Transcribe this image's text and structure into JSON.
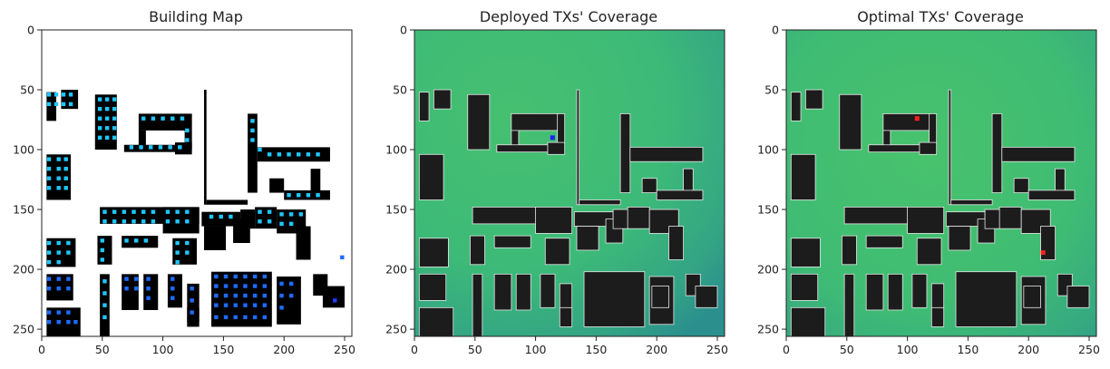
{
  "chart_data": [
    {
      "type": "heatmap",
      "title": "Building Map",
      "xlim": [
        0,
        256
      ],
      "ylim": [
        256,
        0
      ],
      "x_ticks": [
        0,
        50,
        100,
        150,
        200,
        250
      ],
      "y_ticks": [
        0,
        50,
        100,
        150,
        200,
        250
      ],
      "x_tick_labels": [
        "0",
        "50",
        "100",
        "150",
        "200",
        "250"
      ],
      "y_tick_labels": [
        "0",
        "50",
        "100",
        "150",
        "200",
        "250"
      ],
      "background": "#ffffff",
      "building_color": "#000000",
      "marker_colors": [
        "#1ec8ff",
        "#1e6bff"
      ],
      "buildings": [
        [
          4,
          52,
          12,
          76
        ],
        [
          16,
          50,
          30,
          66
        ],
        [
          44,
          54,
          62,
          100
        ],
        [
          80,
          70,
          120,
          84
        ],
        [
          118,
          70,
          124,
          100
        ],
        [
          80,
          84,
          86,
          98
        ],
        [
          68,
          96,
          110,
          102
        ],
        [
          110,
          94,
          124,
          104
        ],
        [
          4,
          104,
          24,
          142
        ],
        [
          170,
          70,
          178,
          136
        ],
        [
          178,
          98,
          238,
          110
        ],
        [
          222,
          116,
          230,
          136
        ],
        [
          188,
          124,
          200,
          136
        ],
        [
          200,
          134,
          238,
          142
        ],
        [
          134,
          50,
          136,
          146
        ],
        [
          136,
          142,
          170,
          146
        ],
        [
          48,
          148,
          130,
          162
        ],
        [
          176,
          148,
          194,
          166
        ],
        [
          194,
          150,
          218,
          170
        ],
        [
          210,
          164,
          222,
          192
        ],
        [
          4,
          174,
          28,
          198
        ],
        [
          46,
          172,
          58,
          196
        ],
        [
          66,
          172,
          96,
          182
        ],
        [
          108,
          174,
          128,
          196
        ],
        [
          132,
          152,
          164,
          164
        ],
        [
          134,
          164,
          152,
          184
        ],
        [
          158,
          158,
          172,
          178
        ],
        [
          100,
          148,
          130,
          170
        ],
        [
          164,
          150,
          176,
          166
        ],
        [
          4,
          204,
          26,
          226
        ],
        [
          4,
          232,
          32,
          256
        ],
        [
          48,
          204,
          56,
          256
        ],
        [
          66,
          204,
          80,
          234
        ],
        [
          84,
          204,
          96,
          234
        ],
        [
          104,
          204,
          116,
          232
        ],
        [
          120,
          212,
          130,
          244
        ],
        [
          140,
          202,
          190,
          248
        ],
        [
          194,
          206,
          214,
          246
        ],
        [
          224,
          204,
          236,
          222
        ],
        [
          232,
          214,
          250,
          232
        ],
        [
          120,
          232,
          130,
          248
        ],
        [
          196,
          214,
          210,
          232
        ]
      ],
      "markers": [
        [
          6,
          54,
          "#1ec8ff"
        ],
        [
          12,
          54,
          "#1ec8ff"
        ],
        [
          18,
          54,
          "#1ec8ff"
        ],
        [
          24,
          54,
          "#1ec8ff"
        ],
        [
          6,
          62,
          "#1ec8ff"
        ],
        [
          12,
          62,
          "#1ec8ff"
        ],
        [
          18,
          62,
          "#1ec8ff"
        ],
        [
          24,
          62,
          "#1ec8ff"
        ],
        [
          48,
          58,
          "#1ec8ff"
        ],
        [
          54,
          58,
          "#1ec8ff"
        ],
        [
          60,
          58,
          "#1ec8ff"
        ],
        [
          48,
          66,
          "#1ec8ff"
        ],
        [
          54,
          66,
          "#1ec8ff"
        ],
        [
          60,
          66,
          "#1ec8ff"
        ],
        [
          48,
          74,
          "#1ec8ff"
        ],
        [
          54,
          74,
          "#1ec8ff"
        ],
        [
          60,
          74,
          "#1ec8ff"
        ],
        [
          48,
          82,
          "#1ec8ff"
        ],
        [
          54,
          82,
          "#1ec8ff"
        ],
        [
          60,
          82,
          "#1ec8ff"
        ],
        [
          48,
          90,
          "#1ec8ff"
        ],
        [
          54,
          90,
          "#1ec8ff"
        ],
        [
          60,
          90,
          "#1ec8ff"
        ],
        [
          84,
          74,
          "#1ec8ff"
        ],
        [
          92,
          74,
          "#1ec8ff"
        ],
        [
          100,
          74,
          "#1ec8ff"
        ],
        [
          108,
          74,
          "#1ec8ff"
        ],
        [
          116,
          74,
          "#1ec8ff"
        ],
        [
          120,
          84,
          "#1ec8ff"
        ],
        [
          120,
          92,
          "#1ec8ff"
        ],
        [
          74,
          98,
          "#1ec8ff"
        ],
        [
          82,
          98,
          "#1ec8ff"
        ],
        [
          90,
          98,
          "#1ec8ff"
        ],
        [
          98,
          98,
          "#1ec8ff"
        ],
        [
          106,
          98,
          "#1ec8ff"
        ],
        [
          114,
          98,
          "#1ec8ff"
        ],
        [
          6,
          108,
          "#1ec8ff"
        ],
        [
          14,
          108,
          "#1ec8ff"
        ],
        [
          20,
          108,
          "#1ec8ff"
        ],
        [
          6,
          116,
          "#1ec8ff"
        ],
        [
          14,
          116,
          "#1ec8ff"
        ],
        [
          20,
          116,
          "#1ec8ff"
        ],
        [
          6,
          124,
          "#1ec8ff"
        ],
        [
          14,
          124,
          "#1ec8ff"
        ],
        [
          20,
          124,
          "#1ec8ff"
        ],
        [
          6,
          132,
          "#1ec8ff"
        ],
        [
          14,
          132,
          "#1ec8ff"
        ],
        [
          20,
          132,
          "#1ec8ff"
        ],
        [
          174,
          76,
          "#1ec8ff"
        ],
        [
          174,
          84,
          "#1ec8ff"
        ],
        [
          174,
          92,
          "#1ec8ff"
        ],
        [
          180,
          100,
          "#1ec8ff"
        ],
        [
          188,
          104,
          "#1ec8ff"
        ],
        [
          196,
          104,
          "#1ec8ff"
        ],
        [
          204,
          104,
          "#1ec8ff"
        ],
        [
          212,
          104,
          "#1ec8ff"
        ],
        [
          220,
          104,
          "#1ec8ff"
        ],
        [
          228,
          104,
          "#1ec8ff"
        ],
        [
          204,
          138,
          "#1ec8ff"
        ],
        [
          212,
          138,
          "#1ec8ff"
        ],
        [
          220,
          138,
          "#1ec8ff"
        ],
        [
          228,
          138,
          "#1ec8ff"
        ],
        [
          52,
          152,
          "#1ec8ff"
        ],
        [
          60,
          152,
          "#1ec8ff"
        ],
        [
          68,
          152,
          "#1ec8ff"
        ],
        [
          76,
          152,
          "#1ec8ff"
        ],
        [
          84,
          152,
          "#1ec8ff"
        ],
        [
          92,
          152,
          "#1ec8ff"
        ],
        [
          52,
          160,
          "#1ec8ff"
        ],
        [
          60,
          160,
          "#1ec8ff"
        ],
        [
          68,
          160,
          "#1ec8ff"
        ],
        [
          76,
          160,
          "#1ec8ff"
        ],
        [
          84,
          160,
          "#1ec8ff"
        ],
        [
          92,
          160,
          "#1ec8ff"
        ],
        [
          104,
          152,
          "#1ec8ff"
        ],
        [
          112,
          152,
          "#1ec8ff"
        ],
        [
          120,
          152,
          "#1ec8ff"
        ],
        [
          104,
          160,
          "#1ec8ff"
        ],
        [
          112,
          160,
          "#1ec8ff"
        ],
        [
          120,
          160,
          "#1ec8ff"
        ],
        [
          140,
          156,
          "#1ec8ff"
        ],
        [
          148,
          156,
          "#1ec8ff"
        ],
        [
          156,
          156,
          "#1ec8ff"
        ],
        [
          180,
          152,
          "#1ec8ff"
        ],
        [
          188,
          152,
          "#1ec8ff"
        ],
        [
          180,
          160,
          "#1ec8ff"
        ],
        [
          188,
          160,
          "#1ec8ff"
        ],
        [
          198,
          154,
          "#1ec8ff"
        ],
        [
          206,
          154,
          "#1ec8ff"
        ],
        [
          214,
          154,
          "#1ec8ff"
        ],
        [
          198,
          162,
          "#1ec8ff"
        ],
        [
          206,
          162,
          "#1ec8ff"
        ],
        [
          6,
          178,
          "#1ec8ff"
        ],
        [
          14,
          178,
          "#1ec8ff"
        ],
        [
          22,
          178,
          "#1ec8ff"
        ],
        [
          6,
          186,
          "#1ec8ff"
        ],
        [
          14,
          186,
          "#1ec8ff"
        ],
        [
          22,
          186,
          "#1ec8ff"
        ],
        [
          6,
          194,
          "#1ec8ff"
        ],
        [
          14,
          194,
          "#1ec8ff"
        ],
        [
          70,
          176,
          "#1ec8ff"
        ],
        [
          78,
          176,
          "#1ec8ff"
        ],
        [
          86,
          176,
          "#1ec8ff"
        ],
        [
          50,
          176,
          "#1ec8ff"
        ],
        [
          50,
          184,
          "#1ec8ff"
        ],
        [
          50,
          192,
          "#1ec8ff"
        ],
        [
          112,
          178,
          "#1ec8ff"
        ],
        [
          120,
          178,
          "#1ec8ff"
        ],
        [
          112,
          186,
          "#1ec8ff"
        ],
        [
          120,
          186,
          "#1ec8ff"
        ],
        [
          112,
          194,
          "#1ec8ff"
        ],
        [
          6,
          208,
          "#1e6bff"
        ],
        [
          14,
          208,
          "#1e6bff"
        ],
        [
          22,
          208,
          "#1e6bff"
        ],
        [
          6,
          216,
          "#1e6bff"
        ],
        [
          14,
          216,
          "#1e6bff"
        ],
        [
          22,
          216,
          "#1e6bff"
        ],
        [
          6,
          236,
          "#1e6bff"
        ],
        [
          14,
          236,
          "#1e6bff"
        ],
        [
          22,
          236,
          "#1e6bff"
        ],
        [
          6,
          244,
          "#1e6bff"
        ],
        [
          14,
          244,
          "#1e6bff"
        ],
        [
          22,
          244,
          "#1e6bff"
        ],
        [
          28,
          244,
          "#1e6bff"
        ],
        [
          52,
          210,
          "#1ec8ff"
        ],
        [
          52,
          220,
          "#1ec8ff"
        ],
        [
          52,
          230,
          "#1ec8ff"
        ],
        [
          52,
          240,
          "#1ec8ff"
        ],
        [
          70,
          208,
          "#1e6bff"
        ],
        [
          78,
          208,
          "#1e6bff"
        ],
        [
          70,
          216,
          "#1e6bff"
        ],
        [
          78,
          216,
          "#1e6bff"
        ],
        [
          88,
          208,
          "#1e6bff"
        ],
        [
          88,
          216,
          "#1e6bff"
        ],
        [
          88,
          224,
          "#1e6bff"
        ],
        [
          108,
          208,
          "#1e6bff"
        ],
        [
          108,
          216,
          "#1e6bff"
        ],
        [
          108,
          224,
          "#1e6bff"
        ],
        [
          124,
          216,
          "#1e6bff"
        ],
        [
          124,
          226,
          "#1e6bff"
        ],
        [
          124,
          236,
          "#1e6bff"
        ],
        [
          144,
          206,
          "#1e6bff"
        ],
        [
          152,
          206,
          "#1e6bff"
        ],
        [
          160,
          206,
          "#1e6bff"
        ],
        [
          168,
          206,
          "#1e6bff"
        ],
        [
          176,
          206,
          "#1e6bff"
        ],
        [
          184,
          206,
          "#1e6bff"
        ],
        [
          144,
          214,
          "#1e6bff"
        ],
        [
          152,
          214,
          "#1e6bff"
        ],
        [
          160,
          214,
          "#1e6bff"
        ],
        [
          168,
          214,
          "#1e6bff"
        ],
        [
          176,
          214,
          "#1e6bff"
        ],
        [
          184,
          214,
          "#1e6bff"
        ],
        [
          144,
          222,
          "#1e6bff"
        ],
        [
          152,
          222,
          "#1e6bff"
        ],
        [
          160,
          222,
          "#1e6bff"
        ],
        [
          168,
          222,
          "#1e6bff"
        ],
        [
          176,
          222,
          "#1e6bff"
        ],
        [
          184,
          222,
          "#1e6bff"
        ],
        [
          144,
          230,
          "#1e6bff"
        ],
        [
          152,
          230,
          "#1e6bff"
        ],
        [
          160,
          230,
          "#1e6bff"
        ],
        [
          168,
          230,
          "#1e6bff"
        ],
        [
          176,
          230,
          "#1e6bff"
        ],
        [
          184,
          230,
          "#1e6bff"
        ],
        [
          144,
          240,
          "#1e6bff"
        ],
        [
          152,
          240,
          "#1e6bff"
        ],
        [
          160,
          240,
          "#1e6bff"
        ],
        [
          168,
          240,
          "#1e6bff"
        ],
        [
          176,
          240,
          "#1e6bff"
        ],
        [
          184,
          240,
          "#1e6bff"
        ],
        [
          198,
          212,
          "#1e6bff"
        ],
        [
          206,
          212,
          "#1e6bff"
        ],
        [
          198,
          222,
          "#1e6bff"
        ],
        [
          206,
          222,
          "#1e6bff"
        ],
        [
          198,
          232,
          "#1e6bff"
        ],
        [
          242,
          226,
          "#1e3cff"
        ],
        [
          248,
          190,
          "#1e6bff"
        ]
      ]
    },
    {
      "type": "heatmap",
      "title": "Deployed TXs' Coverage",
      "xlim": [
        0,
        256
      ],
      "ylim": [
        256,
        0
      ],
      "x_ticks": [
        0,
        50,
        100,
        150,
        200,
        250
      ],
      "y_ticks": [
        0,
        50,
        100,
        150,
        200,
        250
      ],
      "x_tick_labels": [
        "0",
        "50",
        "100",
        "150",
        "200",
        "250"
      ],
      "y_tick_labels": [
        "0",
        "50",
        "100",
        "150",
        "200",
        "250"
      ],
      "colors": [
        "#3fbe74",
        "#2c9490",
        "#65c56a"
      ],
      "building_color": "#1c1c1c",
      "transmitters": [
        [
          114,
          90,
          "#1e1eff"
        ]
      ]
    },
    {
      "type": "heatmap",
      "title": "Optimal TXs' Coverage",
      "xlim": [
        0,
        256
      ],
      "ylim": [
        256,
        0
      ],
      "x_ticks": [
        0,
        50,
        100,
        150,
        200,
        250
      ],
      "y_ticks": [
        0,
        50,
        100,
        150,
        200,
        250
      ],
      "x_tick_labels": [
        "0",
        "50",
        "100",
        "150",
        "200",
        "250"
      ],
      "y_tick_labels": [
        "0",
        "50",
        "100",
        "150",
        "200",
        "250"
      ],
      "colors": [
        "#3fbe74",
        "#2c9490",
        "#65c56a"
      ],
      "building_color": "#1c1c1c",
      "transmitters": [
        [
          108,
          74,
          "#ff1e1e"
        ],
        [
          212,
          186,
          "#ff1e1e"
        ]
      ]
    }
  ]
}
